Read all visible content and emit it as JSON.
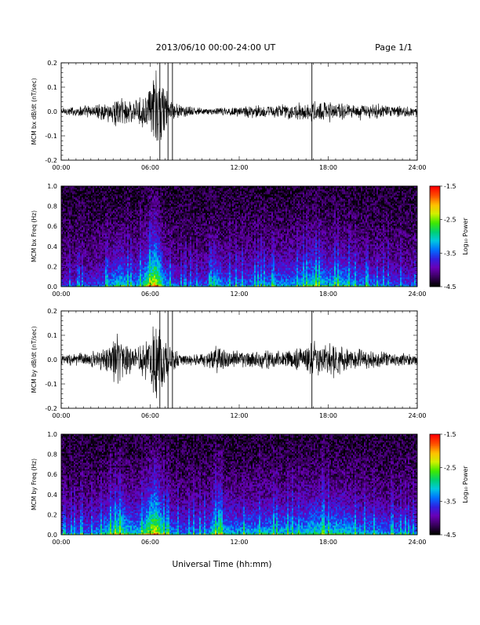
{
  "header": {
    "title": "2013/06/10  00:00-24:00 UT",
    "page": "Page 1/1"
  },
  "colors": {
    "trace": "#000000",
    "background": "#ffffff",
    "colormap": [
      "#000000",
      "#3a0060",
      "#6a00b8",
      "#3020e0",
      "#0070ff",
      "#00c8e0",
      "#00d070",
      "#40e800",
      "#d0f000",
      "#ffc000",
      "#ff5000",
      "#ff0000"
    ]
  },
  "chart_data": [
    {
      "type": "line",
      "ylabel": "MCM bx dB/dt (nT/sec)",
      "xlim": [
        0,
        24
      ],
      "xticks": [
        "00:00",
        "06:00",
        "12:00",
        "18:00",
        "24:00"
      ],
      "ylim": [
        -0.2,
        0.2
      ],
      "yticks": [
        "-0.2",
        "-0.1",
        "0.0",
        "0.1",
        "0.2"
      ],
      "envelope": {
        "x_hours": [
          0,
          1,
          2,
          3,
          3.5,
          4,
          4.5,
          5,
          5.5,
          6,
          6.2,
          6.5,
          7,
          7.5,
          8,
          9,
          10,
          11,
          12,
          13,
          14,
          15,
          16,
          17,
          18,
          19,
          20,
          21,
          22,
          23,
          24
        ],
        "amplitude": [
          0.02,
          0.025,
          0.03,
          0.04,
          0.06,
          0.08,
          0.06,
          0.05,
          0.07,
          0.12,
          0.18,
          0.2,
          0.12,
          0.05,
          0.03,
          0.02,
          0.015,
          0.02,
          0.025,
          0.03,
          0.03,
          0.035,
          0.04,
          0.045,
          0.05,
          0.045,
          0.04,
          0.035,
          0.03,
          0.025,
          0.02
        ]
      },
      "spikes_hours": [
        6.65,
        7.2,
        7.5,
        16.9
      ]
    },
    {
      "type": "heatmap",
      "ylabel": "MCM bx Freq (Hz)",
      "xlim": [
        0,
        24
      ],
      "xticks": [
        "00:00",
        "06:00",
        "12:00",
        "18:00",
        "24:00"
      ],
      "ylim": [
        0,
        1.0
      ],
      "yticks": [
        "0.0",
        "0.2",
        "0.4",
        "0.6",
        "0.8",
        "1.0"
      ],
      "colorbar": {
        "label": "Log₁₀ Power",
        "range": [
          -4.5,
          -1.5
        ],
        "ticks": [
          "-1.5",
          "-2.5",
          "-3.5",
          "-4.5"
        ]
      },
      "activity": {
        "x_hours": [
          0,
          2,
          3,
          4,
          4.5,
          5,
          5.5,
          6,
          6.3,
          6.6,
          7,
          8,
          10,
          10.3,
          11,
          12,
          14,
          16,
          17,
          17.5,
          18,
          19,
          20,
          22,
          24
        ],
        "level": [
          0.2,
          0.25,
          0.35,
          0.6,
          0.45,
          0.4,
          0.55,
          0.85,
          1.0,
          0.8,
          0.45,
          0.25,
          0.3,
          0.6,
          0.35,
          0.35,
          0.4,
          0.45,
          0.6,
          0.55,
          0.5,
          0.55,
          0.4,
          0.3,
          0.25
        ]
      }
    },
    {
      "type": "line",
      "ylabel": "MCM by dB/dt (nT/sec)",
      "xlim": [
        0,
        24
      ],
      "xticks": [
        "00:00",
        "06:00",
        "12:00",
        "18:00",
        "24:00"
      ],
      "ylim": [
        -0.2,
        0.2
      ],
      "yticks": [
        "-0.2",
        "-0.1",
        "0.0",
        "0.1",
        "0.2"
      ],
      "envelope": {
        "x_hours": [
          0,
          1,
          2,
          3,
          3.5,
          4,
          4.5,
          5,
          5.5,
          6,
          6.3,
          6.6,
          7,
          7.5,
          8,
          9,
          10,
          10.5,
          11,
          12,
          13,
          14,
          15,
          16,
          17,
          18,
          18.5,
          19,
          20,
          21,
          22,
          23,
          24
        ],
        "amplitude": [
          0.025,
          0.03,
          0.035,
          0.06,
          0.1,
          0.12,
          0.08,
          0.06,
          0.07,
          0.12,
          0.2,
          0.2,
          0.1,
          0.05,
          0.03,
          0.025,
          0.04,
          0.07,
          0.05,
          0.04,
          0.04,
          0.05,
          0.045,
          0.06,
          0.08,
          0.07,
          0.1,
          0.06,
          0.05,
          0.04,
          0.035,
          0.03,
          0.025
        ]
      },
      "spikes_hours": [
        6.65,
        7.2,
        7.5,
        16.9
      ]
    },
    {
      "type": "heatmap",
      "ylabel": "MCM by Freq (Hz)",
      "xlim": [
        0,
        24
      ],
      "xticks": [
        "00:00",
        "06:00",
        "12:00",
        "18:00",
        "24:00"
      ],
      "ylim": [
        0,
        1.0
      ],
      "yticks": [
        "0.0",
        "0.2",
        "0.4",
        "0.6",
        "0.8",
        "1.0"
      ],
      "colorbar": {
        "label": "Log₁₀ Power",
        "range": [
          -4.5,
          -1.5
        ],
        "ticks": [
          "-1.5",
          "-2.5",
          "-3.5",
          "-4.5"
        ]
      },
      "activity": {
        "x_hours": [
          0,
          2,
          3,
          3.5,
          4,
          4.5,
          5,
          5.5,
          6,
          6.3,
          6.6,
          7,
          8,
          10,
          10.3,
          11,
          12,
          14,
          16,
          17,
          18,
          19,
          20,
          22,
          24
        ],
        "level": [
          0.3,
          0.35,
          0.5,
          0.6,
          0.7,
          0.55,
          0.5,
          0.6,
          0.85,
          1.0,
          0.85,
          0.5,
          0.35,
          0.4,
          0.65,
          0.5,
          0.45,
          0.5,
          0.5,
          0.6,
          0.55,
          0.55,
          0.45,
          0.4,
          0.35
        ]
      }
    }
  ],
  "xaxis": {
    "label": "Universal Time (hh:mm)"
  }
}
